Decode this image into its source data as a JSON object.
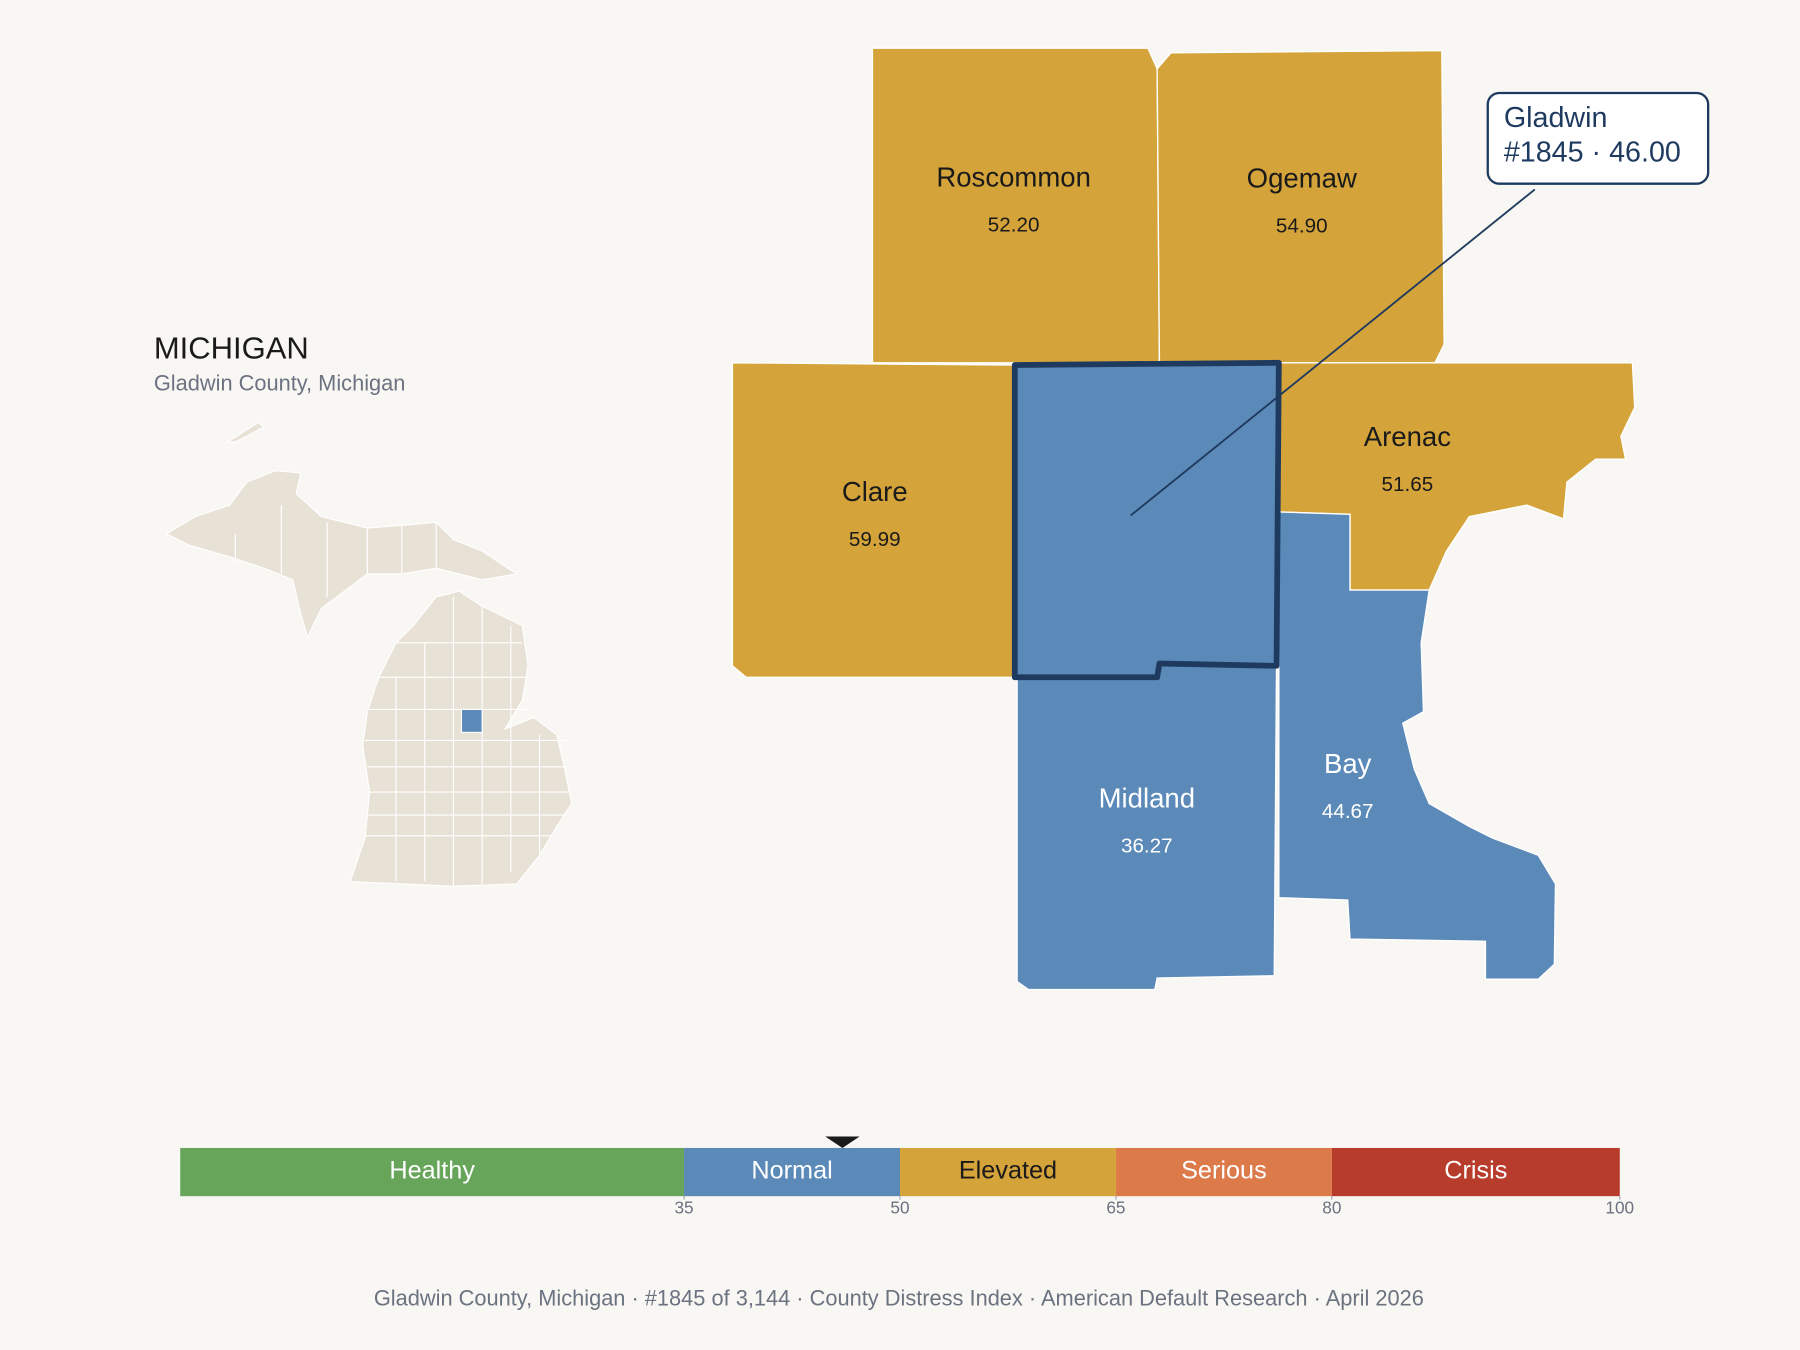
{
  "title": "MICHIGAN",
  "subtitle": "Gladwin County, Michigan",
  "counties": [
    {
      "name": "Roscommon",
      "value": 52.2,
      "value_label": "52.20"
    },
    {
      "name": "Ogemaw",
      "value": 54.9,
      "value_label": "54.90"
    },
    {
      "name": "Clare",
      "value": 59.99
    },
    {
      "name": "Arenac",
      "value": 51.65
    },
    {
      "name": "Midland",
      "value": 36.27
    },
    {
      "name": "Bay",
      "value": 44.67
    },
    {
      "name": "Gladwin",
      "value": 46,
      "selected": true
    }
  ],
  "callout_detail": "#1845 · 46.00",
  "scale": {
    "xlim": [
      0,
      100
    ],
    "bands": [
      {
        "name": "Healthy",
        "max": 35,
        "color": "#67a55a"
      },
      {
        "name": "Normal",
        "max": 50,
        "color": "#5b89b8"
      },
      {
        "name": "Elevated",
        "max": 65,
        "color": "#d4a33a"
      },
      {
        "name": "Serious",
        "max": 80,
        "color": "#dc7a4a"
      },
      {
        "name": "Crisis",
        "max": 100,
        "color": "#b83c2c"
      }
    ],
    "xticks": [
      35,
      50,
      65,
      80,
      100
    ]
  },
  "footer": "Gladwin County, Michigan  ·  #1845 of 3,144  ·  County Distress Index  ·  American Default Research  ·  April 2026"
}
